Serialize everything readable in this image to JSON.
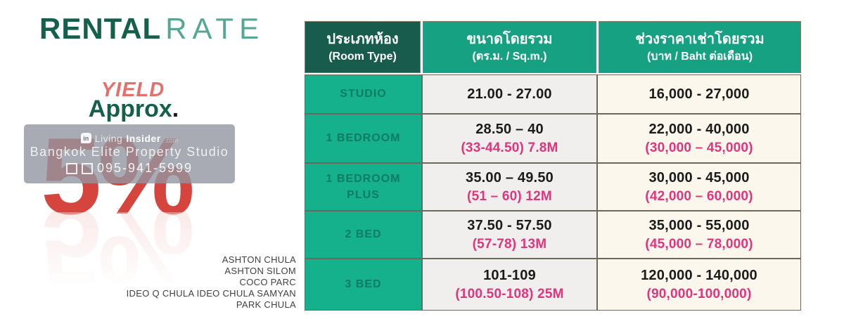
{
  "title": {
    "primary": "RENTAL",
    "secondary": "RATE"
  },
  "yield_block": {
    "label": "YIELD",
    "approx": "Approx",
    "dot": ".",
    "value": "5%"
  },
  "watermark": {
    "logo_glyph": "in",
    "brand_pre": "Living",
    "brand_bold": "Insider",
    "brand_tld": ".com",
    "studio": "Bangkok Elite Property Studio",
    "phone": "095-941-5999"
  },
  "projects": [
    "ASHTON CHULA",
    "ASHTON SILOM",
    "COCO PARC",
    "IDEO Q CHULA IDEO CHULA SAMYAN",
    "PARK CHULA"
  ],
  "table": {
    "headers": [
      {
        "l1": "ประเภทห้อง",
        "l2": "(Room Type)"
      },
      {
        "l1": "ขนาดโดยรวม",
        "l2": "(ตร.ม. / Sq.m.)"
      },
      {
        "l1": "ช่วงราคาเช่าโดยรวม",
        "l2": "(บาท / Baht ต่อเดือน)"
      }
    ],
    "rows": [
      {
        "room_type": "STUDIO",
        "size_main": "21.00 - 27.00",
        "size_sub": "",
        "price_main": "16,000 - 27,000",
        "price_sub": ""
      },
      {
        "room_type": "1 BEDROOM",
        "size_main": "28.50 – 40",
        "size_sub": "(33-44.50) 7.8M",
        "price_main": "22,000 - 40,000",
        "price_sub": "(30,000 – 45,000)"
      },
      {
        "room_type": "1 BEDROOM PLUS",
        "size_main": "35.00 – 49.50",
        "size_sub": "(51 – 60) 12M",
        "price_main": "30,000 - 45,000",
        "price_sub": "(42,000 – 60,000)"
      },
      {
        "room_type": "2 BED",
        "size_main": "37.50 - 57.50",
        "size_sub": "(57-78) 13M",
        "price_main": "35,000 - 55,000",
        "price_sub": "(45,000 – 78,000)"
      },
      {
        "room_type": "3 BED",
        "size_main": "101-109",
        "size_sub": "(100.50-108) 25M",
        "price_main": "120,000 - 140,000",
        "price_sub": "(90,000-100,000)"
      }
    ]
  },
  "colors": {
    "title_dark": "#14604d",
    "title_light": "#55a795",
    "coral": "#e3706c",
    "red": "#d6453d",
    "header_dark_teal": "#185c4e",
    "header_teal": "#16a183",
    "room_cell_teal": "#15b18c",
    "room_text": "#0c7c63",
    "pink": "#e2347c",
    "size_cell_gray": "#f0efed",
    "price_cell_cream": "#fcf7ec"
  }
}
